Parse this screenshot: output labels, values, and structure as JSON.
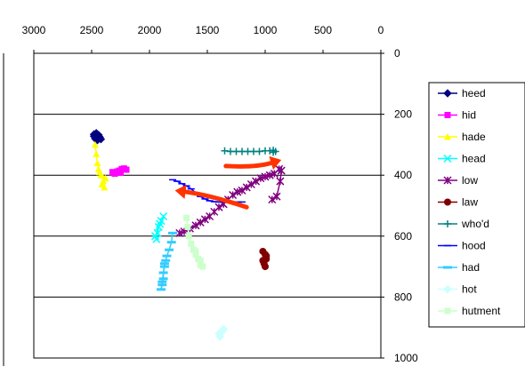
{
  "chart_data": {
    "type": "scatter",
    "x_axis": {
      "range": [
        3000,
        0
      ],
      "reversed": true,
      "position": "top",
      "ticks": [
        3000,
        2500,
        2000,
        1500,
        1000,
        500,
        0
      ],
      "tick_labels": [
        "3000",
        "2500",
        "2000",
        "1500",
        "1000",
        "500",
        "0"
      ]
    },
    "y_axis": {
      "range": [
        0,
        1000
      ],
      "reversed": true,
      "position": "right",
      "ticks": [
        0,
        200,
        400,
        600,
        800,
        1000
      ],
      "tick_labels": [
        "0",
        "200",
        "400",
        "600",
        "800",
        "1000"
      ]
    },
    "grid": {
      "horizontal": true,
      "vertical": false
    },
    "legend": {
      "placement": "right"
    },
    "series": [
      {
        "name": "heed",
        "color": "#000080",
        "marker": "diamond",
        "points": [
          [
            2480,
            266
          ],
          [
            2460,
            262
          ],
          [
            2440,
            268
          ],
          [
            2430,
            275
          ],
          [
            2470,
            280
          ],
          [
            2450,
            285
          ],
          [
            2440,
            278
          ],
          [
            2480,
            272
          ],
          [
            2420,
            282
          ]
        ]
      },
      {
        "name": "hid",
        "color": "#ff00ff",
        "marker": "square",
        "points": [
          [
            2320,
            390
          ],
          [
            2280,
            388
          ],
          [
            2260,
            385
          ],
          [
            2240,
            380
          ],
          [
            2220,
            378
          ],
          [
            2200,
            382
          ],
          [
            2250,
            392
          ],
          [
            2300,
            395
          ]
        ]
      },
      {
        "name": "hade",
        "color": "#ffff00",
        "marker": "triangle",
        "points": [
          [
            2470,
            300
          ],
          [
            2460,
            330
          ],
          [
            2450,
            360
          ],
          [
            2440,
            380
          ],
          [
            2420,
            400
          ],
          [
            2400,
            420
          ],
          [
            2390,
            440
          ],
          [
            2410,
            430
          ],
          [
            2380,
            410
          ],
          [
            2430,
            390
          ]
        ]
      },
      {
        "name": "head",
        "color": "#00ffff",
        "marker": "x",
        "points": [
          [
            1940,
            610
          ],
          [
            1930,
            590
          ],
          [
            1920,
            570
          ],
          [
            1900,
            550
          ],
          [
            1880,
            535
          ],
          [
            1910,
            560
          ],
          [
            1950,
            600
          ]
        ]
      },
      {
        "name": "low",
        "color": "#800080",
        "marker": "star",
        "points": [
          [
            1740,
            590
          ],
          [
            1700,
            585
          ],
          [
            1650,
            575
          ],
          [
            1600,
            565
          ],
          [
            1560,
            555
          ],
          [
            1520,
            545
          ],
          [
            1480,
            535
          ],
          [
            1440,
            520
          ],
          [
            1400,
            505
          ],
          [
            1360,
            495
          ],
          [
            1320,
            480
          ],
          [
            1280,
            465
          ],
          [
            1240,
            455
          ],
          [
            1200,
            450
          ],
          [
            1160,
            440
          ],
          [
            1120,
            430
          ],
          [
            1080,
            420
          ],
          [
            1040,
            410
          ],
          [
            1000,
            405
          ],
          [
            960,
            400
          ],
          [
            920,
            395
          ],
          [
            880,
            380
          ],
          [
            860,
            385
          ],
          [
            870,
            420
          ],
          [
            900,
            470
          ],
          [
            940,
            480
          ]
        ]
      },
      {
        "name": "law",
        "color": "#800000",
        "marker": "circle",
        "points": [
          [
            1020,
            650
          ],
          [
            1000,
            660
          ],
          [
            990,
            675
          ],
          [
            1010,
            690
          ],
          [
            1000,
            700
          ],
          [
            1020,
            680
          ],
          [
            990,
            665
          ]
        ]
      },
      {
        "name": "who'd",
        "color": "#008080",
        "marker": "plus",
        "points": [
          [
            1350,
            320
          ],
          [
            1300,
            322
          ],
          [
            1250,
            322
          ],
          [
            1200,
            322
          ],
          [
            1150,
            322
          ],
          [
            1100,
            322
          ],
          [
            1050,
            322
          ],
          [
            1000,
            320
          ],
          [
            960,
            320
          ],
          [
            930,
            318
          ],
          [
            910,
            322
          ],
          [
            930,
            325
          ]
        ]
      },
      {
        "name": "hood",
        "color": "#0000ff",
        "marker": "dash",
        "points": [
          [
            1800,
            415
          ],
          [
            1760,
            420
          ],
          [
            1720,
            428
          ],
          [
            1680,
            435
          ],
          [
            1640,
            445
          ],
          [
            1600,
            458
          ],
          [
            1560,
            470
          ],
          [
            1520,
            478
          ],
          [
            1480,
            484
          ],
          [
            1440,
            487
          ],
          [
            1400,
            488
          ],
          [
            1360,
            488
          ],
          [
            1320,
            488
          ],
          [
            1280,
            488
          ],
          [
            1240,
            488
          ],
          [
            1200,
            488
          ]
        ]
      },
      {
        "name": "had",
        "color": "#33ccff",
        "marker": "bar",
        "points": [
          [
            1800,
            590
          ],
          [
            1810,
            620
          ],
          [
            1830,
            645
          ],
          [
            1850,
            665
          ],
          [
            1860,
            680
          ],
          [
            1870,
            700
          ],
          [
            1880,
            720
          ],
          [
            1880,
            740
          ],
          [
            1890,
            760
          ],
          [
            1900,
            775
          ],
          [
            1890,
            750
          ],
          [
            1870,
            690
          ]
        ]
      },
      {
        "name": "hot",
        "color": "#ccffff",
        "marker": "diamond",
        "points": [
          [
            1360,
            905
          ],
          [
            1380,
            915
          ],
          [
            1400,
            920
          ],
          [
            1390,
            930
          ],
          [
            1370,
            912
          ]
        ]
      },
      {
        "name": "hutment",
        "color": "#ccffcc",
        "marker": "square",
        "points": [
          [
            1680,
            540
          ],
          [
            1670,
            570
          ],
          [
            1660,
            600
          ],
          [
            1640,
            625
          ],
          [
            1620,
            645
          ],
          [
            1600,
            660
          ],
          [
            1580,
            675
          ],
          [
            1560,
            695
          ],
          [
            1540,
            700
          ],
          [
            1560,
            680
          ],
          [
            1600,
            650
          ]
        ]
      }
    ],
    "annotations": [
      {
        "type": "arrow",
        "color": "#ff3300",
        "path": [
          [
            1340,
            370
          ],
          [
            1080,
            375
          ],
          [
            860,
            350
          ]
        ]
      },
      {
        "type": "arrow",
        "color": "#ff3300",
        "path": [
          [
            1160,
            505
          ],
          [
            1480,
            465
          ],
          [
            1780,
            450
          ]
        ]
      }
    ]
  }
}
